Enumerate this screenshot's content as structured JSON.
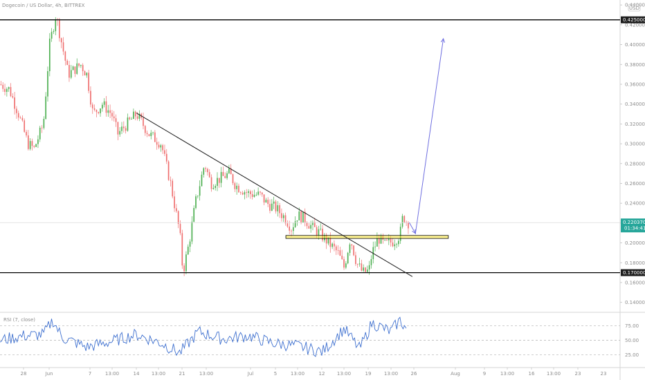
{
  "symbol_title": "Dogecoin / US Dollar, 4h, BITTREX",
  "currency_badge": "USD",
  "chart_data": {
    "type": "candlestick",
    "y_range": [
      0.13,
      0.445
    ],
    "price_ticks": [
      "0.44000000",
      "0.42000000",
      "0.40000000",
      "0.38000000",
      "0.36000000",
      "0.34000000",
      "0.32000000",
      "0.30000000",
      "0.28000000",
      "0.26000000",
      "0.24000000",
      "0.22000000",
      "0.20000000",
      "0.18000000",
      "0.16000000",
      "0.14000000"
    ],
    "x_labels": [
      "28",
      "Jun",
      "7",
      "13:00",
      "14",
      "13:00",
      "21",
      "13:00",
      "Jul",
      "5",
      "13:00",
      "12",
      "13:00",
      "19",
      "13:00",
      "26",
      "Aug",
      "9",
      "13:00",
      "16",
      "13:00",
      "23"
    ],
    "horizontal_levels": [
      {
        "label": "0.42500000",
        "price": 0.425
      },
      {
        "label": "0.17000000",
        "price": 0.17
      }
    ],
    "current_price": {
      "label": "0.22037000",
      "countdown": "01:34:41",
      "price": 0.2204
    },
    "support_zone": [
      0.2045,
      0.2075
    ],
    "trendline": [
      {
        "t": 0.22,
        "p": 0.331
      },
      {
        "t": 0.665,
        "p": 0.166
      }
    ],
    "projection": [
      {
        "t": 0.66,
        "p": 0.2205
      },
      {
        "t": 0.67,
        "p": 0.2095
      },
      {
        "t": 0.715,
        "p": 0.406
      }
    ],
    "price_path": [
      {
        "t": 0.0,
        "p": 0.36
      },
      {
        "t": 0.015,
        "p": 0.355
      },
      {
        "t": 0.03,
        "p": 0.33
      },
      {
        "t": 0.045,
        "p": 0.3
      },
      {
        "t": 0.055,
        "p": 0.295
      },
      {
        "t": 0.07,
        "p": 0.32
      },
      {
        "t": 0.08,
        "p": 0.4
      },
      {
        "t": 0.09,
        "p": 0.43
      },
      {
        "t": 0.1,
        "p": 0.4
      },
      {
        "t": 0.11,
        "p": 0.37
      },
      {
        "t": 0.13,
        "p": 0.38
      },
      {
        "t": 0.14,
        "p": 0.37
      },
      {
        "t": 0.15,
        "p": 0.33
      },
      {
        "t": 0.165,
        "p": 0.34
      },
      {
        "t": 0.18,
        "p": 0.33
      },
      {
        "t": 0.19,
        "p": 0.31
      },
      {
        "t": 0.205,
        "p": 0.32
      },
      {
        "t": 0.22,
        "p": 0.33
      },
      {
        "t": 0.24,
        "p": 0.31
      },
      {
        "t": 0.26,
        "p": 0.3
      },
      {
        "t": 0.275,
        "p": 0.26
      },
      {
        "t": 0.29,
        "p": 0.21
      },
      {
        "t": 0.295,
        "p": 0.17
      },
      {
        "t": 0.305,
        "p": 0.2
      },
      {
        "t": 0.315,
        "p": 0.24
      },
      {
        "t": 0.33,
        "p": 0.28
      },
      {
        "t": 0.34,
        "p": 0.26
      },
      {
        "t": 0.355,
        "p": 0.265
      },
      {
        "t": 0.37,
        "p": 0.27
      },
      {
        "t": 0.38,
        "p": 0.258
      },
      {
        "t": 0.4,
        "p": 0.25
      },
      {
        "t": 0.42,
        "p": 0.248
      },
      {
        "t": 0.43,
        "p": 0.24
      },
      {
        "t": 0.445,
        "p": 0.235
      },
      {
        "t": 0.46,
        "p": 0.225
      },
      {
        "t": 0.47,
        "p": 0.215
      },
      {
        "t": 0.48,
        "p": 0.228
      },
      {
        "t": 0.49,
        "p": 0.225
      },
      {
        "t": 0.5,
        "p": 0.218
      },
      {
        "t": 0.515,
        "p": 0.21
      },
      {
        "t": 0.53,
        "p": 0.2
      },
      {
        "t": 0.545,
        "p": 0.19
      },
      {
        "t": 0.555,
        "p": 0.175
      },
      {
        "t": 0.565,
        "p": 0.205
      },
      {
        "t": 0.575,
        "p": 0.18
      },
      {
        "t": 0.585,
        "p": 0.17
      },
      {
        "t": 0.595,
        "p": 0.172
      },
      {
        "t": 0.6,
        "p": 0.19
      },
      {
        "t": 0.61,
        "p": 0.205
      },
      {
        "t": 0.62,
        "p": 0.198
      },
      {
        "t": 0.635,
        "p": 0.202
      },
      {
        "t": 0.645,
        "p": 0.208
      },
      {
        "t": 0.65,
        "p": 0.228
      },
      {
        "t": 0.655,
        "p": 0.222
      },
      {
        "t": 0.66,
        "p": 0.22
      }
    ],
    "indicator": {
      "label": "RSI (7, close)",
      "y_range": [
        5,
        95
      ],
      "levels": [
        "75.00",
        "50.00",
        "25.00"
      ],
      "path": [
        {
          "t": 0.0,
          "v": 50
        },
        {
          "t": 0.04,
          "v": 58
        },
        {
          "t": 0.07,
          "v": 60
        },
        {
          "t": 0.085,
          "v": 85
        },
        {
          "t": 0.1,
          "v": 55
        },
        {
          "t": 0.14,
          "v": 38
        },
        {
          "t": 0.18,
          "v": 48
        },
        {
          "t": 0.22,
          "v": 60
        },
        {
          "t": 0.26,
          "v": 45
        },
        {
          "t": 0.29,
          "v": 28
        },
        {
          "t": 0.32,
          "v": 65
        },
        {
          "t": 0.36,
          "v": 52
        },
        {
          "t": 0.4,
          "v": 58
        },
        {
          "t": 0.44,
          "v": 45
        },
        {
          "t": 0.48,
          "v": 40
        },
        {
          "t": 0.52,
          "v": 30
        },
        {
          "t": 0.555,
          "v": 70
        },
        {
          "t": 0.58,
          "v": 35
        },
        {
          "t": 0.6,
          "v": 80
        },
        {
          "t": 0.63,
          "v": 65
        },
        {
          "t": 0.645,
          "v": 85
        },
        {
          "t": 0.655,
          "v": 70
        }
      ]
    }
  }
}
